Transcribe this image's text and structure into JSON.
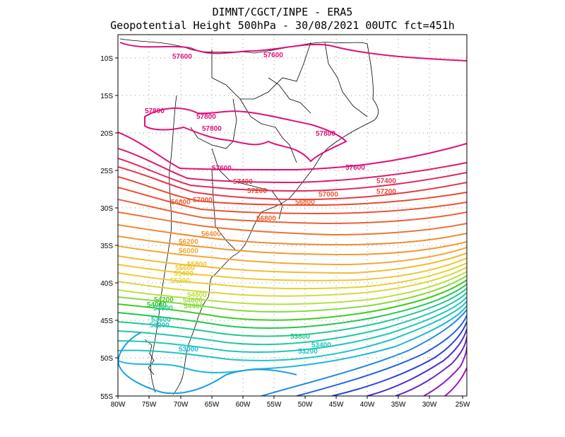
{
  "title_line1": "DIMNT/CGCT/INPE - ERA5",
  "title_line2": "Geopotential Height 500hPa -  30/08/2021 00UTC fct=451h",
  "lat_ticks": [
    "10S",
    "15S",
    "20S",
    "25S",
    "30S",
    "35S",
    "40S",
    "45S",
    "50S",
    "55S"
  ],
  "lon_ticks": [
    "80W",
    "75W",
    "70W",
    "65W",
    "60W",
    "55W",
    "50W",
    "45W",
    "40W",
    "35W",
    "30W",
    "25W"
  ],
  "contour_labels": [
    {
      "text": "57600",
      "color": "#e0107a"
    },
    {
      "text": "57600",
      "color": "#e0107a"
    },
    {
      "text": "57800",
      "color": "#e0107a"
    },
    {
      "text": "57800",
      "color": "#e0107a"
    },
    {
      "text": "57800",
      "color": "#e0107a"
    },
    {
      "text": "57800",
      "color": "#e0107a"
    },
    {
      "text": "57600",
      "color": "#e0107a"
    },
    {
      "text": "57600",
      "color": "#e0107a"
    },
    {
      "text": "57400",
      "color": "#e23a4a"
    },
    {
      "text": "57400",
      "color": "#e23a4a"
    },
    {
      "text": "57200",
      "color": "#e84a30"
    },
    {
      "text": "57200",
      "color": "#e84a30"
    },
    {
      "text": "57000",
      "color": "#ea5530"
    },
    {
      "text": "57000",
      "color": "#ea5530"
    },
    {
      "text": "56800",
      "color": "#ec6230"
    },
    {
      "text": "56800",
      "color": "#ec6230"
    },
    {
      "text": "56800",
      "color": "#ec6230"
    },
    {
      "text": "56400",
      "color": "#f08a30"
    },
    {
      "text": "56200",
      "color": "#f29a30"
    },
    {
      "text": "56000",
      "color": "#f4a830"
    },
    {
      "text": "55800",
      "color": "#f0bc30"
    },
    {
      "text": "55600",
      "color": "#eec830"
    },
    {
      "text": "55400",
      "color": "#e8d030"
    },
    {
      "text": "55200",
      "color": "#e0d43a"
    },
    {
      "text": "54800",
      "color": "#b8e040"
    },
    {
      "text": "54600",
      "color": "#a0dc40"
    },
    {
      "text": "54400",
      "color": "#8ad840"
    },
    {
      "text": "54200",
      "color": "#40cc20"
    },
    {
      "text": "54000",
      "color": "#20c840"
    },
    {
      "text": "53800",
      "color": "#20c890"
    },
    {
      "text": "53600",
      "color": "#20c8a8"
    },
    {
      "text": "53400",
      "color": "#20c8b8"
    },
    {
      "text": "53200",
      "color": "#20c4c4"
    },
    {
      "text": "53000",
      "color": "#20b8d8"
    },
    {
      "text": "53800",
      "color": "#20c890"
    },
    {
      "text": "53400",
      "color": "#20c8b8"
    },
    {
      "text": "53200",
      "color": "#20c4c4"
    }
  ]
}
